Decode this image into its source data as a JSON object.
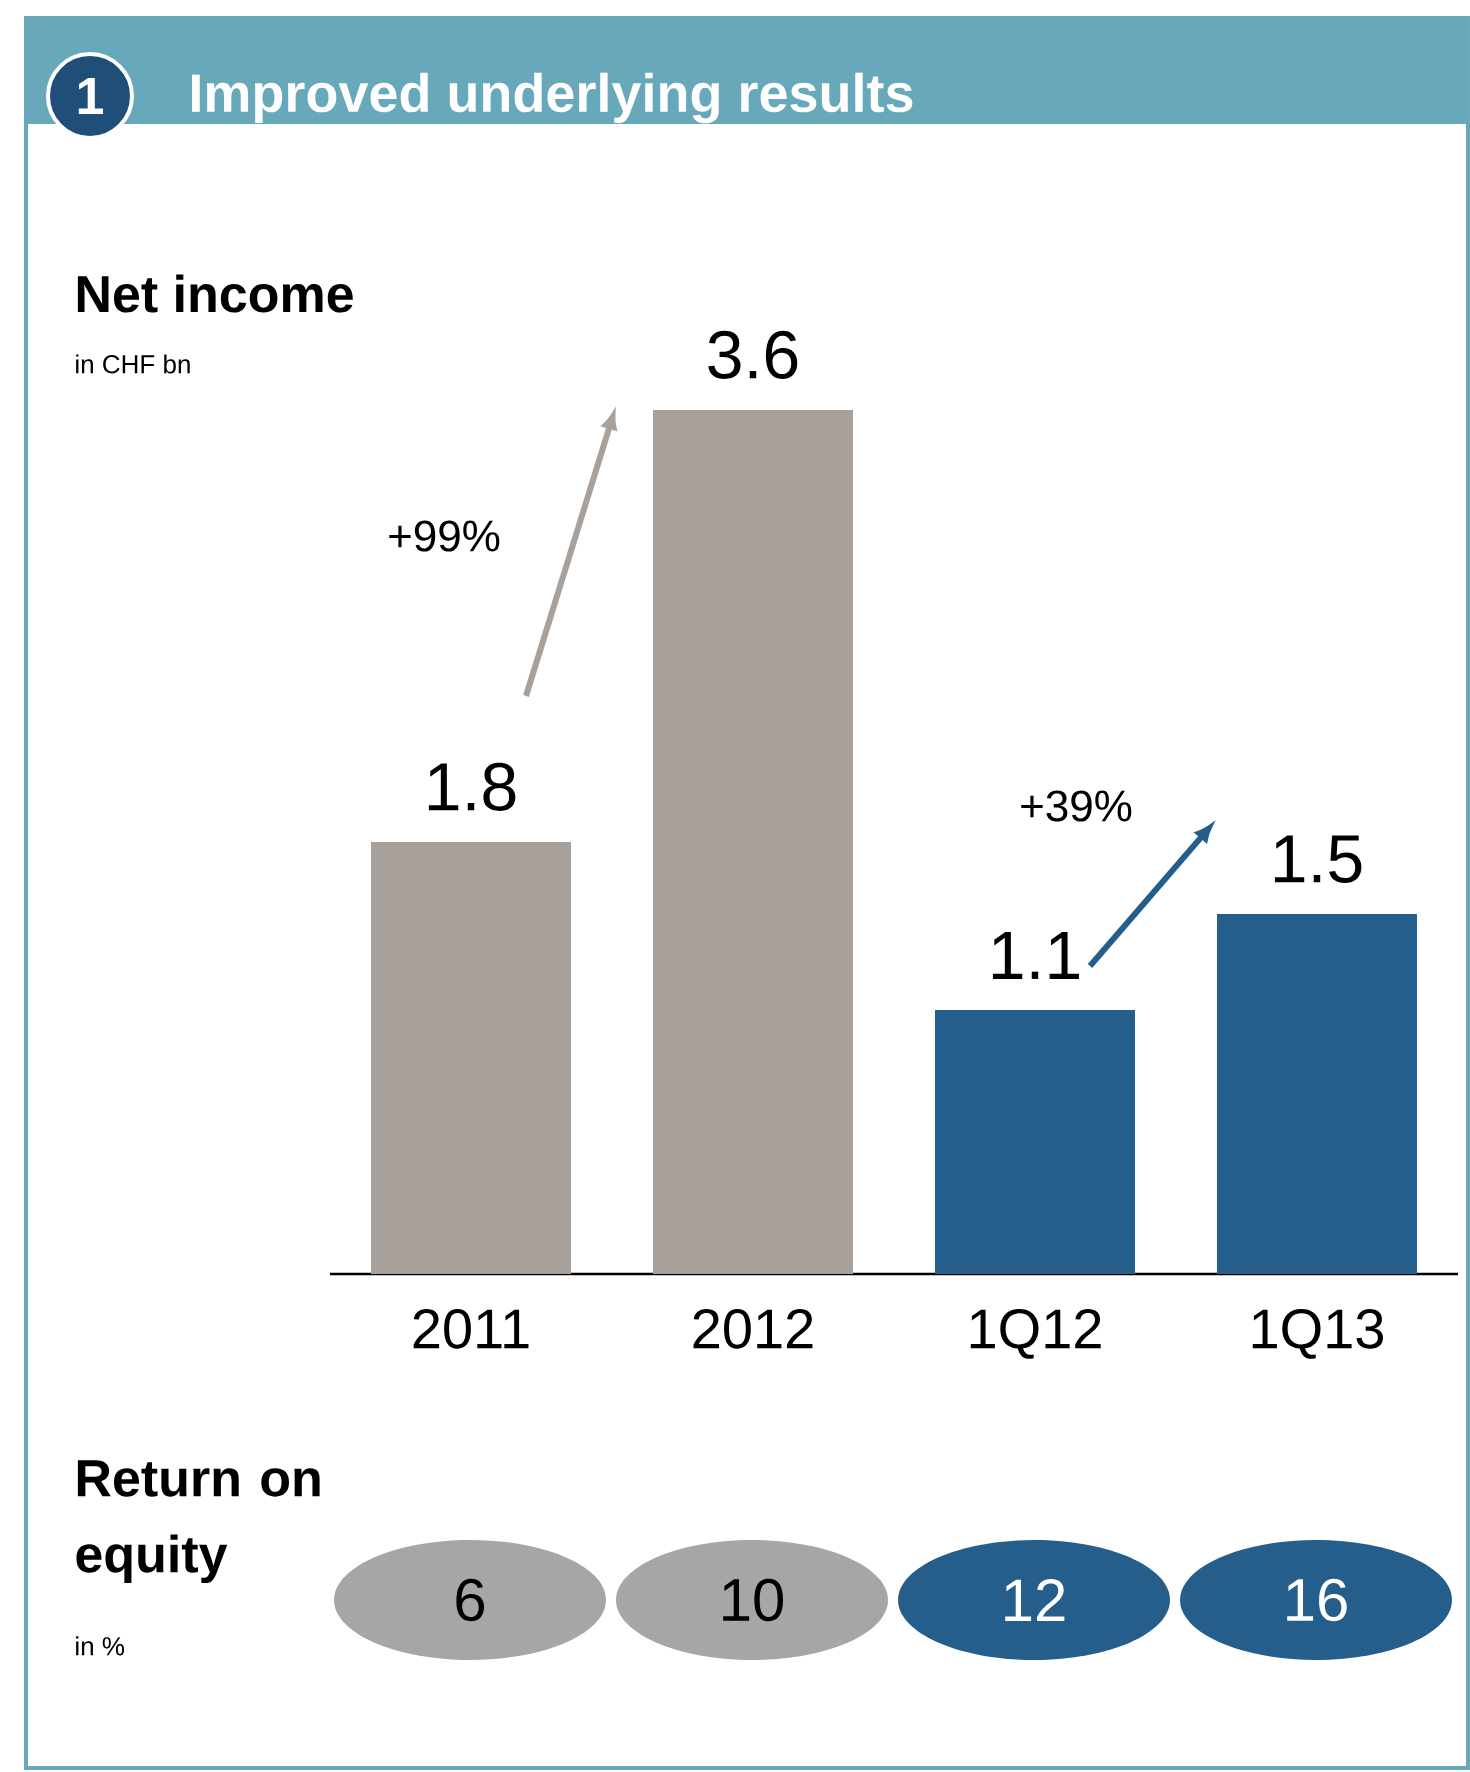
{
  "chart_data": [
    {
      "type": "bar",
      "title": "Net income",
      "subtitle": "in CHF bn",
      "categories": [
        "2011",
        "2012",
        "1Q12",
        "1Q13"
      ],
      "values": [
        1.8,
        3.6,
        1.1,
        1.5
      ],
      "colors": [
        "#a8a09a",
        "#a8a09a",
        "#255d8b",
        "#255d8b"
      ],
      "data_labels": true,
      "annotations": [
        "1",
        "Improved underlying results",
        "+99%",
        "+39%"
      ]
    },
    {
      "type": "other",
      "title": "Return on equity",
      "subtitle": "in %",
      "values": [
        6,
        10,
        12,
        16
      ],
      "value_labels": [
        "6",
        "10",
        "12",
        "16"
      ],
      "colors": [
        "#a6a6a6",
        "#a6a6a6",
        "#255d8b",
        "#255d8b"
      ]
    }
  ]
}
